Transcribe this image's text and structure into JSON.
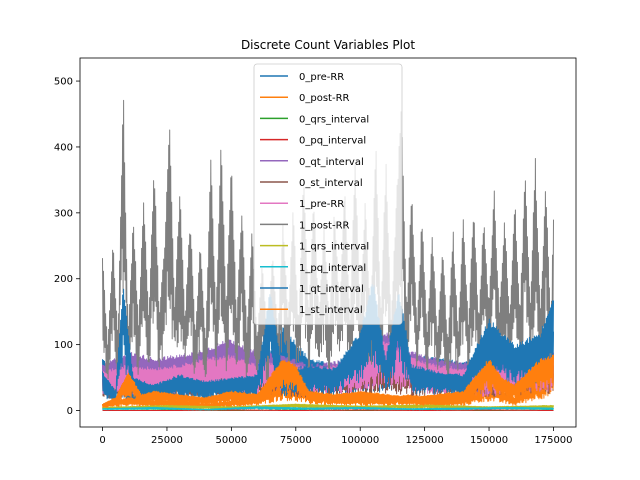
{
  "chart_data": {
    "type": "line",
    "title": "Discrete Count Variables Plot",
    "xlabel": "",
    "ylabel": "",
    "xlim": [
      -8750,
      183750
    ],
    "ylim": [
      -25,
      535
    ],
    "x_ticks": [
      0,
      25000,
      50000,
      75000,
      100000,
      125000,
      150000,
      175000
    ],
    "y_ticks": [
      0,
      100,
      200,
      300,
      400,
      500
    ],
    "x_range": [
      0,
      175000
    ],
    "grid": false,
    "legend_position": "top-center",
    "series": [
      {
        "name": "0_pre-RR",
        "color": "#1f77b4",
        "points": [
          [
            0,
            80
          ],
          [
            10000,
            40
          ],
          [
            20000,
            60
          ],
          [
            30000,
            55
          ],
          [
            40000,
            50
          ],
          [
            50000,
            45
          ],
          [
            60000,
            60
          ],
          [
            70000,
            130
          ],
          [
            80000,
            80
          ],
          [
            90000,
            70
          ],
          [
            100000,
            75
          ],
          [
            110000,
            80
          ],
          [
            120000,
            85
          ],
          [
            130000,
            80
          ],
          [
            140000,
            75
          ],
          [
            150000,
            90
          ],
          [
            160000,
            85
          ],
          [
            170000,
            100
          ],
          [
            175000,
            120
          ]
        ]
      },
      {
        "name": "0_post-RR",
        "color": "#ff7f0e",
        "points": [
          [
            0,
            10
          ],
          [
            10000,
            20
          ],
          [
            20000,
            15
          ],
          [
            30000,
            15
          ],
          [
            40000,
            10
          ],
          [
            50000,
            15
          ],
          [
            60000,
            20
          ],
          [
            70000,
            45
          ],
          [
            80000,
            30
          ],
          [
            90000,
            20
          ],
          [
            100000,
            20
          ],
          [
            110000,
            20
          ],
          [
            120000,
            25
          ],
          [
            130000,
            15
          ],
          [
            140000,
            20
          ],
          [
            150000,
            40
          ],
          [
            160000,
            20
          ],
          [
            170000,
            50
          ],
          [
            175000,
            60
          ]
        ]
      },
      {
        "name": "0_qrs_interval",
        "color": "#2ca02c",
        "points": [
          [
            0,
            0
          ],
          [
            25000,
            1
          ],
          [
            50000,
            0
          ],
          [
            75000,
            1
          ],
          [
            100000,
            0
          ],
          [
            125000,
            1
          ],
          [
            150000,
            0
          ],
          [
            175000,
            1
          ]
        ]
      },
      {
        "name": "0_pq_interval",
        "color": "#d62728",
        "points": [
          [
            0,
            0
          ],
          [
            25000,
            0
          ],
          [
            50000,
            1
          ],
          [
            75000,
            0
          ],
          [
            100000,
            1
          ],
          [
            125000,
            0
          ],
          [
            150000,
            1
          ],
          [
            175000,
            0
          ]
        ]
      },
      {
        "name": "0_qt_interval",
        "color": "#9467bd",
        "points": [
          [
            0,
            70
          ],
          [
            10000,
            90
          ],
          [
            20000,
            80
          ],
          [
            30000,
            85
          ],
          [
            40000,
            95
          ],
          [
            50000,
            110
          ],
          [
            60000,
            90
          ],
          [
            70000,
            85
          ],
          [
            80000,
            70
          ],
          [
            90000,
            75
          ],
          [
            100000,
            80
          ],
          [
            110000,
            120
          ],
          [
            120000,
            90
          ],
          [
            130000,
            80
          ],
          [
            140000,
            75
          ],
          [
            150000,
            70
          ],
          [
            160000,
            80
          ],
          [
            170000,
            90
          ],
          [
            175000,
            95
          ]
        ]
      },
      {
        "name": "0_st_interval",
        "color": "#8c564b",
        "points": [
          [
            0,
            50
          ],
          [
            10000,
            60
          ],
          [
            20000,
            55
          ],
          [
            30000,
            60
          ],
          [
            40000,
            65
          ],
          [
            50000,
            70
          ],
          [
            60000,
            60
          ],
          [
            70000,
            65
          ],
          [
            80000,
            55
          ],
          [
            90000,
            60
          ],
          [
            100000,
            70
          ],
          [
            110000,
            75
          ],
          [
            120000,
            65
          ],
          [
            130000,
            60
          ],
          [
            140000,
            55
          ],
          [
            150000,
            60
          ],
          [
            160000,
            65
          ],
          [
            170000,
            70
          ],
          [
            175000,
            70
          ]
        ]
      },
      {
        "name": "1_pre-RR",
        "color": "#e377c2",
        "points": [
          [
            0,
            60
          ],
          [
            10000,
            70
          ],
          [
            20000,
            65
          ],
          [
            30000,
            70
          ],
          [
            40000,
            80
          ],
          [
            50000,
            85
          ],
          [
            60000,
            70
          ],
          [
            70000,
            75
          ],
          [
            80000,
            65
          ],
          [
            90000,
            70
          ],
          [
            100000,
            75
          ],
          [
            110000,
            110
          ],
          [
            120000,
            80
          ],
          [
            130000,
            70
          ],
          [
            140000,
            65
          ],
          [
            150000,
            60
          ],
          [
            160000,
            70
          ],
          [
            170000,
            80
          ],
          [
            175000,
            85
          ]
        ]
      },
      {
        "name": "1_post-RR",
        "color": "#7f7f7f",
        "points": [
          [
            0,
            240
          ],
          [
            2000,
            100
          ],
          [
            4000,
            260
          ],
          [
            6000,
            110
          ],
          [
            8000,
            507
          ],
          [
            10000,
            120
          ],
          [
            12000,
            300
          ],
          [
            14000,
            130
          ],
          [
            16000,
            330
          ],
          [
            18000,
            140
          ],
          [
            20000,
            385
          ],
          [
            22000,
            150
          ],
          [
            24000,
            250
          ],
          [
            26000,
            443
          ],
          [
            28000,
            160
          ],
          [
            30000,
            350
          ],
          [
            32000,
            140
          ],
          [
            34000,
            300
          ],
          [
            36000,
            120
          ],
          [
            38000,
            260
          ],
          [
            40000,
            110
          ],
          [
            42000,
            390
          ],
          [
            44000,
            150
          ],
          [
            46000,
            420
          ],
          [
            48000,
            160
          ],
          [
            50000,
            400
          ],
          [
            52000,
            140
          ],
          [
            54000,
            320
          ],
          [
            56000,
            120
          ],
          [
            58000,
            280
          ],
          [
            60000,
            110
          ],
          [
            62000,
            240
          ],
          [
            64000,
            100
          ],
          [
            66000,
            250
          ],
          [
            68000,
            120
          ],
          [
            70000,
            300
          ],
          [
            72000,
            140
          ],
          [
            74000,
            320
          ],
          [
            76000,
            130
          ],
          [
            78000,
            360
          ],
          [
            80000,
            150
          ],
          [
            82000,
            330
          ],
          [
            84000,
            140
          ],
          [
            86000,
            300
          ],
          [
            88000,
            130
          ],
          [
            90000,
            320
          ],
          [
            92000,
            150
          ],
          [
            94000,
            360
          ],
          [
            96000,
            140
          ],
          [
            98000,
            395
          ],
          [
            100000,
            150
          ],
          [
            102000,
            340
          ],
          [
            104000,
            130
          ],
          [
            106000,
            420
          ],
          [
            108000,
            150
          ],
          [
            110000,
            390
          ],
          [
            112000,
            140
          ],
          [
            114000,
            320
          ],
          [
            116000,
            487
          ],
          [
            118000,
            150
          ],
          [
            120000,
            340
          ],
          [
            122000,
            130
          ],
          [
            124000,
            300
          ],
          [
            126000,
            120
          ],
          [
            128000,
            280
          ],
          [
            130000,
            110
          ],
          [
            132000,
            260
          ],
          [
            134000,
            100
          ],
          [
            136000,
            280
          ],
          [
            138000,
            120
          ],
          [
            140000,
            300
          ],
          [
            142000,
            130
          ],
          [
            144000,
            320
          ],
          [
            146000,
            140
          ],
          [
            148000,
            300
          ],
          [
            150000,
            160
          ],
          [
            152000,
            350
          ],
          [
            154000,
            150
          ],
          [
            156000,
            300
          ],
          [
            158000,
            140
          ],
          [
            160000,
            330
          ],
          [
            162000,
            150
          ],
          [
            164000,
            380
          ],
          [
            166000,
            160
          ],
          [
            168000,
            390
          ],
          [
            170000,
            150
          ],
          [
            172000,
            360
          ],
          [
            174000,
            140
          ],
          [
            175000,
            300
          ]
        ]
      },
      {
        "name": "1_qrs_interval",
        "color": "#bcbd22",
        "points": [
          [
            0,
            5
          ],
          [
            25000,
            8
          ],
          [
            50000,
            6
          ],
          [
            75000,
            10
          ],
          [
            100000,
            7
          ],
          [
            125000,
            9
          ],
          [
            150000,
            6
          ],
          [
            175000,
            8
          ]
        ]
      },
      {
        "name": "1_pq_interval",
        "color": "#17becf",
        "points": [
          [
            0,
            3
          ],
          [
            20000,
            5
          ],
          [
            40000,
            2
          ],
          [
            60000,
            6
          ],
          [
            80000,
            4
          ],
          [
            100000,
            5
          ],
          [
            120000,
            3
          ],
          [
            140000,
            4
          ],
          [
            160000,
            5
          ],
          [
            175000,
            4
          ]
        ]
      },
      {
        "name": "1_qt_interval",
        "color": "#1f77b4",
        "points": [
          [
            0,
            60
          ],
          [
            5000,
            30
          ],
          [
            8000,
            195
          ],
          [
            12000,
            50
          ],
          [
            20000,
            40
          ],
          [
            30000,
            55
          ],
          [
            40000,
            45
          ],
          [
            50000,
            50
          ],
          [
            60000,
            55
          ],
          [
            65000,
            185
          ],
          [
            70000,
            60
          ],
          [
            80000,
            70
          ],
          [
            90000,
            65
          ],
          [
            100000,
            120
          ],
          [
            105000,
            200
          ],
          [
            110000,
            80
          ],
          [
            115000,
            190
          ],
          [
            120000,
            70
          ],
          [
            130000,
            60
          ],
          [
            140000,
            55
          ],
          [
            150000,
            140
          ],
          [
            160000,
            100
          ],
          [
            170000,
            120
          ],
          [
            175000,
            180
          ]
        ]
      },
      {
        "name": "1_st_interval",
        "color": "#ff7f0e",
        "points": [
          [
            0,
            10
          ],
          [
            5000,
            20
          ],
          [
            10000,
            60
          ],
          [
            15000,
            25
          ],
          [
            20000,
            30
          ],
          [
            30000,
            25
          ],
          [
            40000,
            20
          ],
          [
            50000,
            30
          ],
          [
            60000,
            25
          ],
          [
            70000,
            80
          ],
          [
            75000,
            70
          ],
          [
            80000,
            30
          ],
          [
            90000,
            25
          ],
          [
            100000,
            30
          ],
          [
            110000,
            25
          ],
          [
            120000,
            20
          ],
          [
            130000,
            25
          ],
          [
            140000,
            30
          ],
          [
            150000,
            80
          ],
          [
            155000,
            50
          ],
          [
            160000,
            40
          ],
          [
            170000,
            80
          ],
          [
            175000,
            85
          ]
        ]
      }
    ]
  }
}
